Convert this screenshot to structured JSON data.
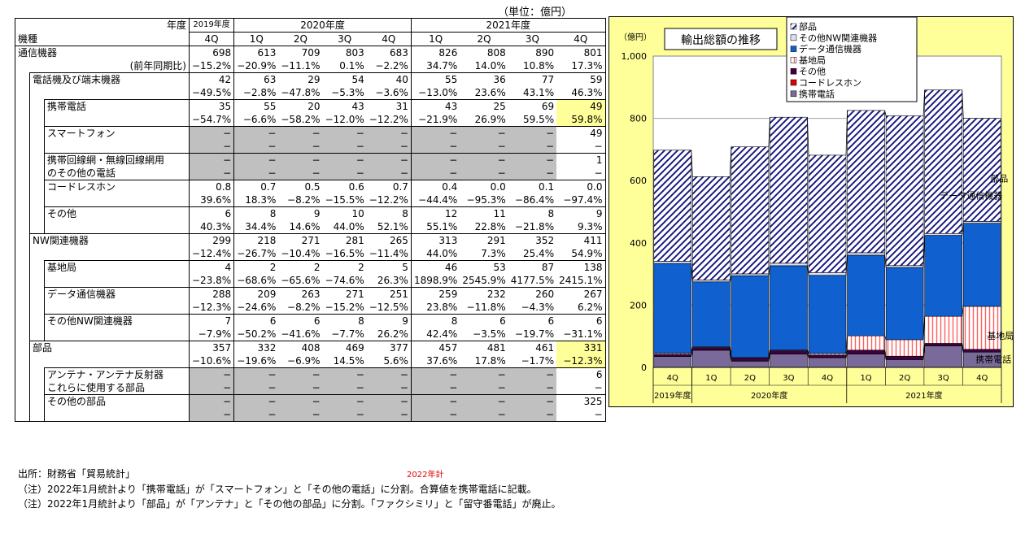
{
  "unit_label": "（単位：億円）",
  "header": {
    "corner_year": "年度",
    "corner_item": "機種",
    "years": [
      "2019年度",
      "2020年度",
      "2021年度"
    ],
    "quarters": [
      "4Q",
      "1Q",
      "2Q",
      "3Q",
      "4Q",
      "1Q",
      "2Q",
      "3Q",
      "4Q"
    ]
  },
  "rows": [
    {
      "level": 0,
      "label": "通信機器",
      "values": [
        "698",
        "613",
        "709",
        "803",
        "683",
        "826",
        "808",
        "890",
        "801"
      ],
      "yoy_label": "(前年同期比)",
      "yoy": [
        "−15.2%",
        "−20.9%",
        "−11.1%",
        "0.1%",
        "−2.2%",
        "34.7%",
        "14.0%",
        "10.8%",
        "17.3%"
      ]
    },
    {
      "level": 1,
      "label": "電話機及び端末機器",
      "values": [
        "42",
        "63",
        "29",
        "54",
        "40",
        "55",
        "36",
        "77",
        "59"
      ],
      "yoy": [
        "−49.5%",
        "−2.8%",
        "−47.8%",
        "−5.3%",
        "−3.6%",
        "−13.0%",
        "23.6%",
        "43.1%",
        "46.3%"
      ]
    },
    {
      "level": 2,
      "label": "携帯電話",
      "values": [
        "35",
        "55",
        "20",
        "43",
        "31",
        "43",
        "25",
        "69",
        "49"
      ],
      "yoy": [
        "−54.7%",
        "−6.6%",
        "−58.2%",
        "−12.0%",
        "−12.2%",
        "−21.9%",
        "26.9%",
        "59.5%",
        "59.8%"
      ],
      "highlight_last": true
    },
    {
      "level": 2,
      "label": "スマートフォン",
      "values": [
        "−",
        "−",
        "−",
        "−",
        "−",
        "−",
        "−",
        "−",
        "49"
      ],
      "yoy": [
        "−",
        "−",
        "−",
        "−",
        "−",
        "−",
        "−",
        "−",
        "−"
      ],
      "gray": true
    },
    {
      "level": 2,
      "label": "携帯回線網・無線回線網用",
      "label2": "のその他の電話",
      "values": [
        "−",
        "−",
        "−",
        "−",
        "−",
        "−",
        "−",
        "−",
        "1"
      ],
      "yoy": [
        "−",
        "−",
        "−",
        "−",
        "−",
        "−",
        "−",
        "−",
        "−"
      ],
      "gray": true
    },
    {
      "level": 2,
      "label": "コードレスホン",
      "values": [
        "0.8",
        "0.7",
        "0.5",
        "0.6",
        "0.7",
        "0.4",
        "0.0",
        "0.1",
        "0.0"
      ],
      "yoy": [
        "39.6%",
        "18.3%",
        "−8.2%",
        "−15.5%",
        "−12.2%",
        "−44.4%",
        "−95.3%",
        "−86.4%",
        "−97.4%"
      ]
    },
    {
      "level": 2,
      "label": "その他",
      "values": [
        "6",
        "8",
        "9",
        "10",
        "8",
        "12",
        "11",
        "8",
        "9"
      ],
      "yoy": [
        "40.3%",
        "34.4%",
        "14.6%",
        "44.0%",
        "52.1%",
        "55.1%",
        "22.8%",
        "−21.8%",
        "9.3%"
      ]
    },
    {
      "level": 1,
      "label": "NW関連機器",
      "values": [
        "299",
        "218",
        "271",
        "281",
        "265",
        "313",
        "291",
        "352",
        "411"
      ],
      "yoy": [
        "−12.4%",
        "−26.7%",
        "−10.4%",
        "−16.5%",
        "−11.4%",
        "44.0%",
        "7.3%",
        "25.4%",
        "54.9%"
      ]
    },
    {
      "level": 2,
      "label": "基地局",
      "values": [
        "4",
        "2",
        "2",
        "2",
        "5",
        "46",
        "53",
        "87",
        "138"
      ],
      "yoy": [
        "−23.8%",
        "−68.6%",
        "−65.6%",
        "−74.6%",
        "26.3%",
        "1898.9%",
        "2545.9%",
        "4177.5%",
        "2415.1%"
      ]
    },
    {
      "level": 2,
      "label": "データ通信機器",
      "values": [
        "288",
        "209",
        "263",
        "271",
        "251",
        "259",
        "232",
        "260",
        "267"
      ],
      "yoy": [
        "−12.3%",
        "−24.6%",
        "−8.2%",
        "−15.2%",
        "−12.5%",
        "23.8%",
        "−11.8%",
        "−4.3%",
        "6.2%"
      ]
    },
    {
      "level": 2,
      "label": "その他NW関連機器",
      "values": [
        "7",
        "6",
        "6",
        "8",
        "9",
        "8",
        "6",
        "6",
        "6"
      ],
      "yoy": [
        "−7.9%",
        "−50.2%",
        "−41.6%",
        "−7.7%",
        "26.2%",
        "42.4%",
        "−3.5%",
        "−19.7%",
        "−31.1%"
      ]
    },
    {
      "level": 1,
      "label": "部品",
      "values": [
        "357",
        "332",
        "408",
        "469",
        "377",
        "457",
        "481",
        "461",
        "331"
      ],
      "yoy": [
        "−10.6%",
        "−19.6%",
        "−6.9%",
        "14.5%",
        "5.6%",
        "37.6%",
        "17.8%",
        "−1.7%",
        "−12.3%"
      ],
      "highlight_last": true
    },
    {
      "level": 2,
      "label": "アンテナ・アンテナ反射器",
      "label2": "これらに使用する部品",
      "values": [
        "−",
        "−",
        "−",
        "−",
        "−",
        "−",
        "−",
        "−",
        "6"
      ],
      "yoy": [
        "−",
        "−",
        "−",
        "−",
        "−",
        "−",
        "−",
        "−",
        "−"
      ],
      "gray": true
    },
    {
      "level": 2,
      "label": "その他の部品",
      "values": [
        "−",
        "−",
        "−",
        "−",
        "−",
        "−",
        "−",
        "−",
        "325"
      ],
      "yoy": [
        "−",
        "−",
        "−",
        "−",
        "−",
        "−",
        "−",
        "−",
        "−"
      ],
      "gray": true
    }
  ],
  "notes": {
    "source": "出所：財務省「貿易統計」",
    "red_mark": "2022年計",
    "note1": "（注）2022年1月統計より「携帯電話」が「スマートフォン」と「その他の電話」に分割。合算値を携帯電話に記載。",
    "note2": "（注）2022年1月統計より「部品」が「アンテナ」と「その他の部品」に分割。「ファクシミリ」と「留守番電話」が廃止。"
  },
  "chart_data": {
    "type": "bar",
    "title": "輸出総額の推移",
    "ylabel": "（億円）",
    "ylim": [
      0,
      1000
    ],
    "yticks": [
      "0",
      "200",
      "400",
      "600",
      "800",
      "1,000"
    ],
    "categories": [
      "4Q",
      "1Q",
      "2Q",
      "3Q",
      "4Q",
      "1Q",
      "2Q",
      "3Q",
      "4Q"
    ],
    "year_groups": [
      {
        "label": "2019年度",
        "count": 1
      },
      {
        "label": "2020年度",
        "count": 4
      },
      {
        "label": "2021年度",
        "count": 4
      }
    ],
    "series": [
      {
        "name": "携帯電話",
        "color": "#7a6a9a",
        "values": [
          35,
          55,
          20,
          43,
          31,
          43,
          25,
          69,
          49
        ]
      },
      {
        "name": "コードレスホン",
        "color": "#e00000",
        "values": [
          0.8,
          0.7,
          0.5,
          0.6,
          0.7,
          0.4,
          0.0,
          0.1,
          0.0
        ]
      },
      {
        "name": "その他",
        "color": "#400040",
        "values": [
          6,
          8,
          9,
          10,
          8,
          12,
          11,
          8,
          9
        ]
      },
      {
        "name": "基地局",
        "color": "#ff8080",
        "values": [
          4,
          2,
          2,
          2,
          5,
          46,
          53,
          87,
          138
        ]
      },
      {
        "name": "データ通信機器",
        "color": "#1060d0",
        "values": [
          288,
          209,
          263,
          271,
          251,
          259,
          232,
          260,
          267
        ]
      },
      {
        "name": "その他NW関連機器",
        "color": "#b8c8f0",
        "values": [
          7,
          6,
          6,
          8,
          9,
          8,
          6,
          6,
          6
        ]
      },
      {
        "name": "部品",
        "color": "#1a1a80",
        "values": [
          357,
          332,
          408,
          469,
          377,
          457,
          481,
          461,
          331
        ]
      }
    ],
    "legend_order": [
      "部品",
      "その他NW関連機器",
      "データ通信機器",
      "基地局",
      "その他",
      "コードレスホン",
      "携帯電話"
    ],
    "series_labels": [
      {
        "text": "部品"
      },
      {
        "text": "データ通信機器"
      },
      {
        "text": "基地局"
      },
      {
        "text": "携帯電話"
      }
    ]
  }
}
